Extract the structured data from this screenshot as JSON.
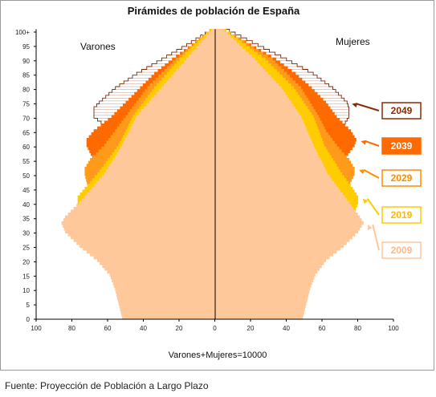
{
  "chart_data": {
    "type": "bar",
    "subtype": "population-pyramid",
    "title": "Pirámides de población de España",
    "left_label": "Varones",
    "right_label": "Mujeres",
    "footnote": "Varones+Mujeres=10000",
    "x_ticks": [
      "100",
      "80",
      "60",
      "40",
      "20",
      "0",
      "20",
      "40",
      "60",
      "80",
      "100"
    ],
    "xlim": [
      -100,
      100
    ],
    "y_ticks": [
      "0",
      "5",
      "10",
      "15",
      "20",
      "25",
      "30",
      "35",
      "40",
      "45",
      "50",
      "55",
      "60",
      "65",
      "70",
      "75",
      "80",
      "85",
      "90",
      "95",
      "100+"
    ],
    "ylim": [
      0,
      100
    ],
    "series": [
      {
        "name": "2049",
        "color": "#ffffff",
        "outline": "#7a2a0a",
        "varones": [
          [
            0,
            50
          ],
          [
            10,
            51
          ],
          [
            20,
            52
          ],
          [
            30,
            52
          ],
          [
            40,
            52
          ],
          [
            50,
            51
          ],
          [
            55,
            51
          ],
          [
            60,
            52
          ],
          [
            65,
            58
          ],
          [
            70,
            68
          ],
          [
            73,
            68
          ],
          [
            75,
            65
          ],
          [
            80,
            56
          ],
          [
            85,
            44
          ],
          [
            90,
            30
          ],
          [
            95,
            16
          ],
          [
            100,
            3
          ]
        ],
        "mujeres": [
          [
            0,
            47
          ],
          [
            10,
            48
          ],
          [
            20,
            49
          ],
          [
            30,
            50
          ],
          [
            40,
            51
          ],
          [
            50,
            53
          ],
          [
            55,
            55
          ],
          [
            60,
            60
          ],
          [
            65,
            70
          ],
          [
            70,
            75
          ],
          [
            73,
            75
          ],
          [
            75,
            74
          ],
          [
            80,
            66
          ],
          [
            85,
            55
          ],
          [
            90,
            40
          ],
          [
            95,
            24
          ],
          [
            100,
            8
          ]
        ]
      },
      {
        "name": "2039",
        "color": "#ff6a00",
        "outline": "#ff6a00",
        "varones": [
          [
            0,
            50
          ],
          [
            10,
            51
          ],
          [
            20,
            52
          ],
          [
            30,
            53
          ],
          [
            40,
            55
          ],
          [
            45,
            57
          ],
          [
            50,
            62
          ],
          [
            55,
            68
          ],
          [
            60,
            72
          ],
          [
            62,
            72
          ],
          [
            65,
            68
          ],
          [
            70,
            58
          ],
          [
            75,
            50
          ],
          [
            80,
            42
          ],
          [
            85,
            34
          ],
          [
            90,
            24
          ],
          [
            95,
            13
          ],
          [
            100,
            3
          ]
        ],
        "mujeres": [
          [
            0,
            47
          ],
          [
            10,
            48
          ],
          [
            20,
            49
          ],
          [
            30,
            51
          ],
          [
            40,
            55
          ],
          [
            45,
            58
          ],
          [
            50,
            65
          ],
          [
            55,
            72
          ],
          [
            60,
            78
          ],
          [
            62,
            79
          ],
          [
            65,
            76
          ],
          [
            70,
            68
          ],
          [
            75,
            62
          ],
          [
            80,
            54
          ],
          [
            85,
            45
          ],
          [
            90,
            34
          ],
          [
            95,
            20
          ],
          [
            100,
            6
          ]
        ]
      },
      {
        "name": "2029",
        "color": "#ff9a1a",
        "outline": "#ff9a1a",
        "varones": [
          [
            0,
            50
          ],
          [
            10,
            51
          ],
          [
            20,
            53
          ],
          [
            30,
            57
          ],
          [
            35,
            60
          ],
          [
            40,
            65
          ],
          [
            45,
            71
          ],
          [
            50,
            73
          ],
          [
            52,
            73
          ],
          [
            55,
            70
          ],
          [
            60,
            62
          ],
          [
            65,
            56
          ],
          [
            70,
            50
          ],
          [
            80,
            38
          ],
          [
            90,
            22
          ],
          [
            100,
            3
          ]
        ],
        "mujeres": [
          [
            0,
            47
          ],
          [
            10,
            48
          ],
          [
            20,
            51
          ],
          [
            30,
            56
          ],
          [
            35,
            60
          ],
          [
            40,
            67
          ],
          [
            45,
            74
          ],
          [
            50,
            78
          ],
          [
            52,
            78
          ],
          [
            55,
            75
          ],
          [
            60,
            68
          ],
          [
            65,
            62
          ],
          [
            70,
            58
          ],
          [
            80,
            48
          ],
          [
            90,
            32
          ],
          [
            100,
            6
          ]
        ]
      },
      {
        "name": "2019",
        "color": "#ffcc00",
        "outline": "#ffcc00",
        "varones": [
          [
            0,
            50
          ],
          [
            10,
            52
          ],
          [
            15,
            54
          ],
          [
            20,
            57
          ],
          [
            25,
            64
          ],
          [
            30,
            70
          ],
          [
            35,
            75
          ],
          [
            40,
            77
          ],
          [
            42,
            77
          ],
          [
            45,
            73
          ],
          [
            50,
            66
          ],
          [
            55,
            60
          ],
          [
            60,
            54
          ],
          [
            70,
            46
          ],
          [
            80,
            34
          ],
          [
            90,
            20
          ],
          [
            100,
            3
          ]
        ],
        "mujeres": [
          [
            0,
            47
          ],
          [
            10,
            49
          ],
          [
            15,
            51
          ],
          [
            20,
            54
          ],
          [
            25,
            62
          ],
          [
            30,
            70
          ],
          [
            35,
            77
          ],
          [
            40,
            80
          ],
          [
            42,
            80
          ],
          [
            45,
            77
          ],
          [
            50,
            71
          ],
          [
            55,
            66
          ],
          [
            60,
            61
          ],
          [
            70,
            55
          ],
          [
            80,
            44
          ],
          [
            90,
            28
          ],
          [
            100,
            6
          ]
        ]
      },
      {
        "name": "2009",
        "color": "#ffc89a",
        "outline": "#ffc89a",
        "varones": [
          [
            0,
            52
          ],
          [
            5,
            54
          ],
          [
            10,
            56
          ],
          [
            15,
            59
          ],
          [
            20,
            66
          ],
          [
            25,
            76
          ],
          [
            30,
            84
          ],
          [
            33,
            86
          ],
          [
            35,
            84
          ],
          [
            40,
            76
          ],
          [
            45,
            69
          ],
          [
            50,
            62
          ],
          [
            55,
            57
          ],
          [
            60,
            52
          ],
          [
            70,
            44
          ],
          [
            80,
            30
          ],
          [
            90,
            16
          ],
          [
            100,
            2
          ]
        ],
        "mujeres": [
          [
            0,
            49
          ],
          [
            5,
            51
          ],
          [
            10,
            53
          ],
          [
            15,
            56
          ],
          [
            20,
            62
          ],
          [
            25,
            72
          ],
          [
            30,
            80
          ],
          [
            33,
            83
          ],
          [
            35,
            81
          ],
          [
            40,
            75
          ],
          [
            45,
            69
          ],
          [
            50,
            63
          ],
          [
            55,
            59
          ],
          [
            60,
            55
          ],
          [
            70,
            48
          ],
          [
            80,
            37
          ],
          [
            90,
            22
          ],
          [
            100,
            5
          ]
        ]
      }
    ],
    "legend": [
      {
        "name": "2049",
        "text_color": "#8b2a06",
        "border": "#8b2a06"
      },
      {
        "name": "2039",
        "text_color": "#ffffff",
        "fill": "#ff6a00"
      },
      {
        "name": "2029",
        "text_color": "#ff8c00",
        "border": "#ff8c00"
      },
      {
        "name": "2019",
        "text_color": "#ffb800",
        "border": "#ffcc00"
      },
      {
        "name": "2009",
        "text_color": "#ffb88a",
        "border": "#ffc89a"
      }
    ],
    "legend_placement": "right",
    "grid": false
  },
  "source": "Fuente: Proyección de Población a Largo Plazo"
}
